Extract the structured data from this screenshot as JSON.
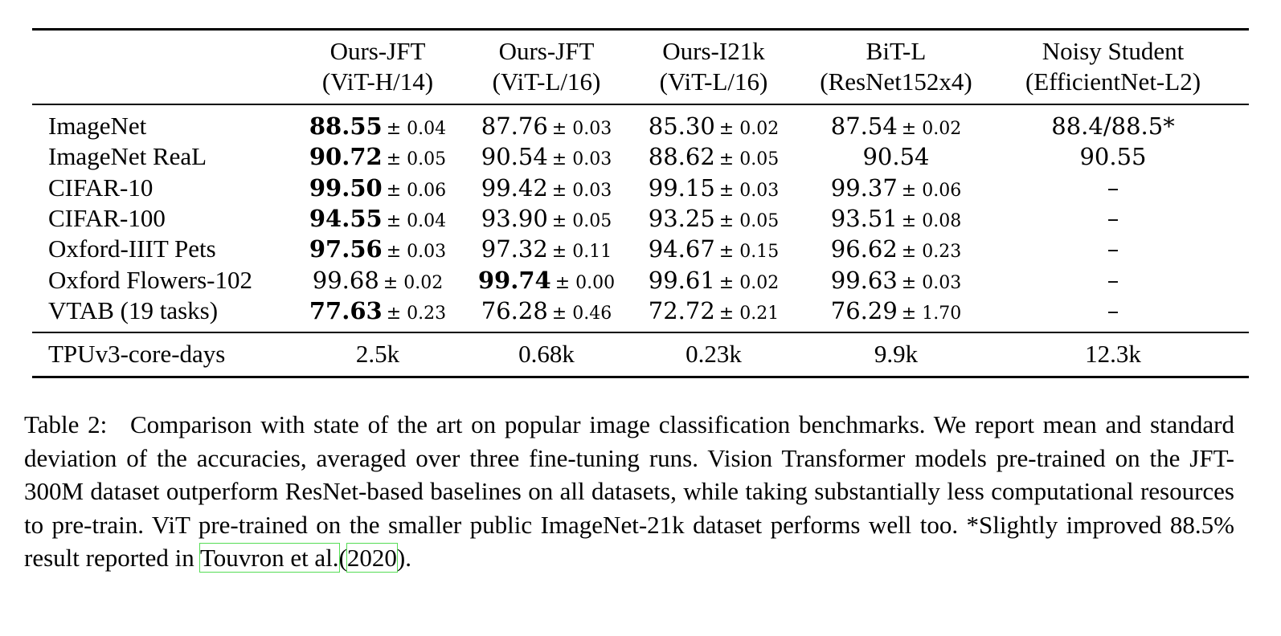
{
  "table": {
    "columns": [
      {
        "line1": "Ours-JFT",
        "line2": "(ViT-H/14)"
      },
      {
        "line1": "Ours-JFT",
        "line2": "(ViT-L/16)"
      },
      {
        "line1": "Ours-I21k",
        "line2": "(ViT-L/16)"
      },
      {
        "line1": "BiT-L",
        "line2": "(ResNet152x4)"
      },
      {
        "line1": "Noisy Student",
        "line2": "(EfficientNet-L2)"
      }
    ],
    "rows": [
      {
        "label": "ImageNet",
        "cells": [
          {
            "v": "88.55",
            "pm": "± 0.04",
            "best": true
          },
          {
            "v": "87.76",
            "pm": "± 0.03"
          },
          {
            "v": "85.30",
            "pm": "± 0.02"
          },
          {
            "v": "87.54",
            "pm": "± 0.02"
          },
          {
            "v": "88.4/88.5*",
            "pm": ""
          }
        ]
      },
      {
        "label": "ImageNet ReaL",
        "cells": [
          {
            "v": "90.72",
            "pm": "± 0.05",
            "best": true
          },
          {
            "v": "90.54",
            "pm": "± 0.03"
          },
          {
            "v": "88.62",
            "pm": "± 0.05"
          },
          {
            "v": "90.54",
            "pm": ""
          },
          {
            "v": "90.55",
            "pm": ""
          }
        ]
      },
      {
        "label": "CIFAR-10",
        "cells": [
          {
            "v": "99.50",
            "pm": "± 0.06",
            "best": true
          },
          {
            "v": "99.42",
            "pm": "± 0.03"
          },
          {
            "v": "99.15",
            "pm": "± 0.03"
          },
          {
            "v": "99.37",
            "pm": "± 0.06"
          },
          {
            "v": "–",
            "pm": ""
          }
        ]
      },
      {
        "label": "CIFAR-100",
        "cells": [
          {
            "v": "94.55",
            "pm": "± 0.04",
            "best": true
          },
          {
            "v": "93.90",
            "pm": "± 0.05"
          },
          {
            "v": "93.25",
            "pm": "± 0.05"
          },
          {
            "v": "93.51",
            "pm": "± 0.08"
          },
          {
            "v": "–",
            "pm": ""
          }
        ]
      },
      {
        "label": "Oxford-IIIT Pets",
        "cells": [
          {
            "v": "97.56",
            "pm": "± 0.03",
            "best": true
          },
          {
            "v": "97.32",
            "pm": "± 0.11"
          },
          {
            "v": "94.67",
            "pm": "± 0.15"
          },
          {
            "v": "96.62",
            "pm": "± 0.23"
          },
          {
            "v": "–",
            "pm": ""
          }
        ]
      },
      {
        "label": "Oxford Flowers-102",
        "cells": [
          {
            "v": "99.68",
            "pm": "± 0.02"
          },
          {
            "v": "99.74",
            "pm": "± 0.00",
            "best": true
          },
          {
            "v": "99.61",
            "pm": "± 0.02"
          },
          {
            "v": "99.63",
            "pm": "± 0.03"
          },
          {
            "v": "–",
            "pm": ""
          }
        ]
      },
      {
        "label": "VTAB (19 tasks)",
        "cells": [
          {
            "v": "77.63",
            "pm": "± 0.23",
            "best": true
          },
          {
            "v": "76.28",
            "pm": "± 0.46"
          },
          {
            "v": "72.72",
            "pm": "± 0.21"
          },
          {
            "v": "76.29",
            "pm": "± 1.70"
          },
          {
            "v": "–",
            "pm": ""
          }
        ]
      }
    ],
    "footer_row": {
      "label": "TPUv3-core-days",
      "cells": [
        "2.5k",
        "0.68k",
        "0.23k",
        "9.9k",
        "12.3k"
      ]
    }
  },
  "caption": {
    "label": "Table 2:",
    "text_before_cite": "Comparison with state of the art on popular image classification benchmarks. We report mean and standard deviation of the accuracies, averaged over three fine-tuning runs. Vision Transformer models pre-trained on the JFT-300M dataset outperform ResNet-based baselines on all datasets, while taking substantially less computational resources to pre-train. ViT pre-trained on the smaller public ImageNet-21k dataset performs well too. *Slightly improved 88.5% result reported in",
    "cite_author": "Touvron et al.",
    "cite_open": "(",
    "cite_year": "2020",
    "cite_close": ").",
    "cite_box_color": "#55dd55"
  }
}
